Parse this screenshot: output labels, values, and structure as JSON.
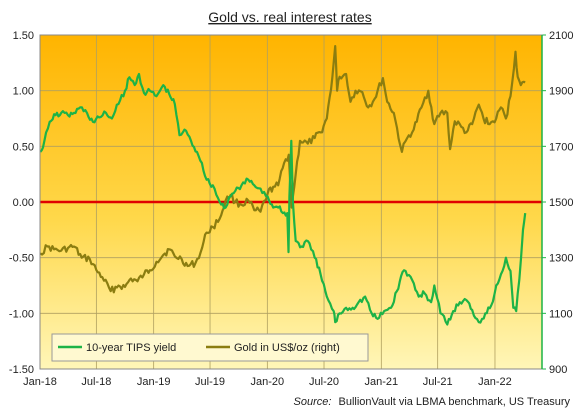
{
  "chart_data": {
    "type": "line",
    "title": "Gold vs. real interest rates",
    "source_label": "Source:",
    "source_text": "BullionVault via LBMA benchmark, US Treasury",
    "x_ticks": [
      "Jan-18",
      "Jul-18",
      "Jan-19",
      "Jul-19",
      "Jan-20",
      "Jul-20",
      "Jan-21",
      "Jul-21",
      "Jan-22"
    ],
    "y_left": {
      "min": -1.5,
      "max": 1.5,
      "ticks": [
        "1.50",
        "1.00",
        "0.50",
        "0.00",
        "-0.50",
        "-1.00",
        "-1.50"
      ]
    },
    "y_right": {
      "min": 900,
      "max": 2100,
      "ticks": [
        "2100",
        "1900",
        "1700",
        "1500",
        "1300",
        "1100",
        "900"
      ]
    },
    "zero_line_color": "#e00000",
    "legend_position": "bottom-left",
    "series": [
      {
        "name": "10-year TIPS yield",
        "axis": "left",
        "color": "#1db347",
        "x": [
          "2018-01-02",
          "2018-01-15",
          "2018-02-01",
          "2018-02-20",
          "2018-03-10",
          "2018-04-01",
          "2018-04-20",
          "2018-05-10",
          "2018-06-01",
          "2018-06-20",
          "2018-07-10",
          "2018-08-01",
          "2018-08-20",
          "2018-09-10",
          "2018-10-01",
          "2018-10-15",
          "2018-11-01",
          "2018-11-15",
          "2018-12-01",
          "2018-12-20",
          "2019-01-10",
          "2019-02-01",
          "2019-02-20",
          "2019-03-10",
          "2019-03-25",
          "2019-04-10",
          "2019-05-01",
          "2019-05-20",
          "2019-06-05",
          "2019-06-20",
          "2019-07-10",
          "2019-08-01",
          "2019-08-20",
          "2019-09-05",
          "2019-09-20",
          "2019-10-10",
          "2019-11-01",
          "2019-11-20",
          "2019-12-10",
          "2020-01-02",
          "2020-01-20",
          "2020-02-05",
          "2020-02-20",
          "2020-03-05",
          "2020-03-09",
          "2020-03-12",
          "2020-03-18",
          "2020-03-23",
          "2020-04-01",
          "2020-04-20",
          "2020-05-10",
          "2020-06-01",
          "2020-06-20",
          "2020-07-10",
          "2020-08-01",
          "2020-08-06",
          "2020-08-20",
          "2020-09-10",
          "2020-10-01",
          "2020-10-20",
          "2020-11-10",
          "2020-12-01",
          "2020-12-20",
          "2021-01-10",
          "2021-02-01",
          "2021-02-20",
          "2021-03-10",
          "2021-03-20",
          "2021-04-10",
          "2021-05-01",
          "2021-05-20",
          "2021-06-10",
          "2021-06-20",
          "2021-07-10",
          "2021-08-01",
          "2021-08-20",
          "2021-09-10",
          "2021-10-01",
          "2021-10-20",
          "2021-11-10",
          "2021-12-01",
          "2021-12-20",
          "2022-01-05",
          "2022-01-20",
          "2022-02-05",
          "2022-02-20",
          "2022-03-01",
          "2022-03-10",
          "2022-03-20",
          "2022-04-01",
          "2022-04-08"
        ],
        "values": [
          0.45,
          0.55,
          0.72,
          0.78,
          0.8,
          0.78,
          0.8,
          0.85,
          0.8,
          0.72,
          0.76,
          0.8,
          0.75,
          0.88,
          1.0,
          1.12,
          1.05,
          1.15,
          0.98,
          1.0,
          0.95,
          1.05,
          0.97,
          0.88,
          0.6,
          0.65,
          0.55,
          0.45,
          0.35,
          0.2,
          0.15,
          0.0,
          -0.05,
          0.05,
          0.1,
          0.15,
          0.2,
          0.15,
          0.12,
          0.05,
          -0.05,
          -0.05,
          -0.1,
          -0.1,
          -0.45,
          0.05,
          0.55,
          0.0,
          -0.35,
          -0.4,
          -0.35,
          -0.5,
          -0.65,
          -0.85,
          -0.98,
          -1.08,
          -1.0,
          -0.95,
          -0.95,
          -0.9,
          -0.85,
          -1.0,
          -1.05,
          -0.98,
          -0.95,
          -0.8,
          -0.63,
          -0.62,
          -0.7,
          -0.85,
          -0.82,
          -0.9,
          -0.75,
          -1.0,
          -1.1,
          -0.98,
          -0.9,
          -0.88,
          -0.97,
          -1.08,
          -1.0,
          -0.93,
          -0.75,
          -0.65,
          -0.5,
          -0.62,
          -0.95,
          -0.98,
          -0.7,
          -0.25,
          -0.1
        ]
      },
      {
        "name": "Gold in US$/oz (right)",
        "axis": "right",
        "color": "#8b7d10",
        "x": [
          "2018-01-02",
          "2018-01-25",
          "2018-02-15",
          "2018-03-10",
          "2018-04-01",
          "2018-04-20",
          "2018-05-15",
          "2018-06-10",
          "2018-07-01",
          "2018-07-20",
          "2018-08-16",
          "2018-09-10",
          "2018-10-01",
          "2018-10-20",
          "2018-11-10",
          "2018-12-01",
          "2018-12-20",
          "2019-01-10",
          "2019-02-01",
          "2019-02-20",
          "2019-03-10",
          "2019-04-01",
          "2019-04-20",
          "2019-05-15",
          "2019-06-01",
          "2019-06-20",
          "2019-07-10",
          "2019-08-01",
          "2019-08-20",
          "2019-09-05",
          "2019-09-20",
          "2019-10-10",
          "2019-11-01",
          "2019-11-20",
          "2019-12-10",
          "2020-01-02",
          "2020-01-20",
          "2020-02-05",
          "2020-02-24",
          "2020-03-10",
          "2020-03-19",
          "2020-04-01",
          "2020-04-15",
          "2020-05-10",
          "2020-06-01",
          "2020-06-20",
          "2020-07-10",
          "2020-07-28",
          "2020-08-06",
          "2020-08-12",
          "2020-08-20",
          "2020-09-10",
          "2020-09-24",
          "2020-10-10",
          "2020-11-01",
          "2020-11-20",
          "2020-12-10",
          "2021-01-06",
          "2021-01-20",
          "2021-02-10",
          "2021-03-08",
          "2021-03-25",
          "2021-04-15",
          "2021-05-10",
          "2021-06-01",
          "2021-06-20",
          "2021-07-10",
          "2021-08-01",
          "2021-08-10",
          "2021-08-25",
          "2021-09-15",
          "2021-10-01",
          "2021-10-20",
          "2021-11-10",
          "2021-11-25",
          "2021-12-15",
          "2022-01-05",
          "2022-01-20",
          "2022-02-05",
          "2022-02-20",
          "2022-03-08",
          "2022-03-15",
          "2022-03-25",
          "2022-04-08"
        ],
        "values": [
          1315,
          1340,
          1330,
          1325,
          1335,
          1340,
          1300,
          1295,
          1255,
          1230,
          1180,
          1200,
          1195,
          1225,
          1215,
          1240,
          1255,
          1285,
          1310,
          1330,
          1305,
          1295,
          1270,
          1280,
          1320,
          1390,
          1410,
          1440,
          1505,
          1525,
          1500,
          1490,
          1505,
          1470,
          1465,
          1530,
          1555,
          1560,
          1640,
          1670,
          1480,
          1600,
          1720,
          1710,
          1730,
          1750,
          1800,
          1950,
          2060,
          1900,
          1950,
          1960,
          1860,
          1900,
          1895,
          1840,
          1870,
          1945,
          1860,
          1820,
          1680,
          1730,
          1760,
          1840,
          1900,
          1780,
          1820,
          1820,
          1690,
          1790,
          1770,
          1750,
          1780,
          1850,
          1800,
          1780,
          1800,
          1840,
          1800,
          1880,
          2040,
          1950,
          1920,
          1930
        ]
      }
    ]
  }
}
